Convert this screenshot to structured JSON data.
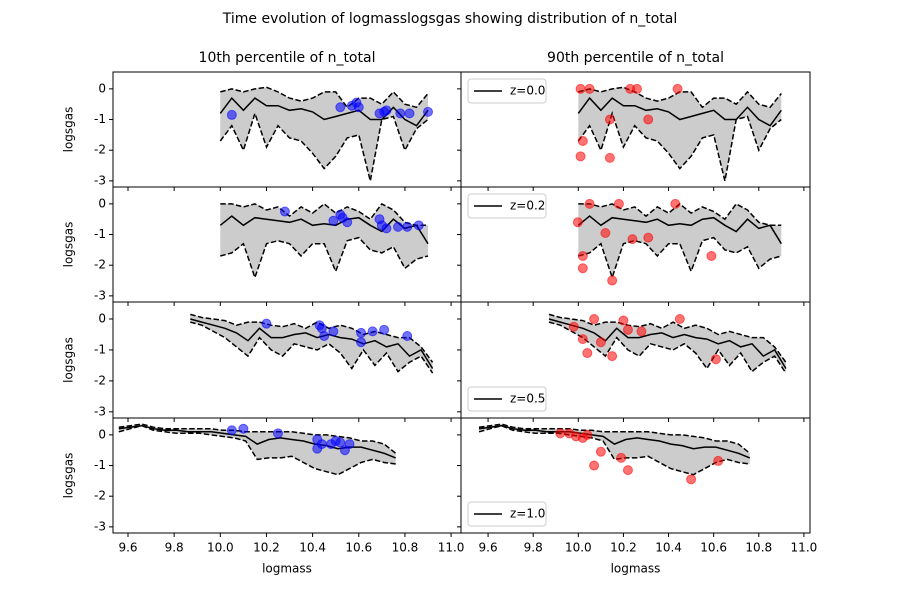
{
  "chart_data": {
    "type": "line",
    "title": "Time evolution of logmasslogsgas showing distribution of n_total",
    "xlabel": "logmass",
    "ylabel": "logsgas",
    "ylim": [
      -3.2,
      0.55
    ],
    "yticks": [
      -3,
      -2,
      -1,
      0
    ],
    "xticks": [
      9.6,
      9.8,
      {
        "value": 10,
        "label": "10.0"
      },
      10.2,
      10.4,
      10.6,
      10.8,
      {
        "value": 11,
        "label": "11.0"
      }
    ],
    "line_color": "#000000",
    "band_color": "#cccccc",
    "columns": [
      {
        "title": "10th percentile of n_total",
        "xlim": [
          9.535,
          11.043
        ],
        "scatter_color": "#0000ff"
      },
      {
        "title": "90th percentile of n_total",
        "xlim": [
          9.48,
          11.027
        ],
        "scatter_color": "#ff0000"
      }
    ],
    "rows": [
      {
        "legend": "z=0.0",
        "legend_loc": "upper left",
        "x": [
          10.0,
          10.05,
          10.1,
          10.15,
          10.2,
          10.25,
          10.3,
          10.35,
          10.4,
          10.45,
          10.5,
          10.55,
          10.6,
          10.65,
          10.7,
          10.75,
          10.8,
          10.85,
          10.9
        ],
        "median": [
          -0.8,
          -0.3,
          -0.7,
          -0.3,
          -0.55,
          -0.55,
          -0.7,
          -0.65,
          -0.75,
          -1.0,
          -0.9,
          -0.8,
          -0.7,
          -1.0,
          -1.0,
          -0.6,
          -1.0,
          -1.2,
          -0.7
        ],
        "upper": [
          -0.1,
          0.0,
          -0.1,
          0.0,
          0.05,
          -0.1,
          -0.3,
          -0.4,
          -0.3,
          -0.1,
          -0.1,
          -0.6,
          -0.3,
          -0.3,
          -0.5,
          -0.1,
          -0.5,
          -0.6,
          -0.15
        ],
        "lower": [
          -1.7,
          -1.2,
          -2.0,
          -0.8,
          -1.9,
          -1.2,
          -1.6,
          -1.7,
          -2.1,
          -2.6,
          -2.2,
          -1.6,
          -1.5,
          -3.0,
          -1.0,
          -0.9,
          -2.0,
          -1.3,
          -1.0
        ],
        "scatter": [
          {
            "x": [
              10.05,
              10.52,
              10.57,
              10.59,
              10.6,
              10.69,
              10.71,
              10.72,
              10.78,
              10.82,
              10.9
            ],
            "y": [
              -0.85,
              -0.6,
              -0.55,
              -0.45,
              -0.6,
              -0.8,
              -0.75,
              -0.7,
              -0.8,
              -0.8,
              -0.75
            ]
          },
          {
            "x": [
              10.01,
              10.05,
              10.14,
              10.23,
              10.26,
              10.44,
              10.31,
              10.01,
              10.02,
              10.14
            ],
            "y": [
              0,
              0,
              -1.0,
              0,
              0,
              0,
              -1.0,
              -2.2,
              -1.7,
              -2.25
            ]
          }
        ]
      },
      {
        "legend": "z=0.2",
        "legend_loc": "upper left",
        "x": [
          10.0,
          10.05,
          10.1,
          10.15,
          10.2,
          10.25,
          10.3,
          10.35,
          10.4,
          10.45,
          10.5,
          10.55,
          10.6,
          10.65,
          10.7,
          10.75,
          10.8,
          10.85,
          10.9
        ],
        "median": [
          -0.7,
          -0.4,
          -0.7,
          -0.45,
          -0.5,
          -0.55,
          -0.6,
          -0.5,
          -0.7,
          -0.65,
          -0.7,
          -0.5,
          -0.45,
          -0.7,
          -0.9,
          -0.5,
          -0.8,
          -0.7,
          -1.3
        ],
        "upper": [
          0.0,
          0.0,
          -0.1,
          0.0,
          -0.2,
          -0.1,
          -0.4,
          -0.1,
          -0.3,
          0.0,
          -0.3,
          -0.1,
          -0.25,
          -0.5,
          0.0,
          -0.2,
          -0.6,
          -0.7,
          -0.7
        ],
        "lower": [
          -1.7,
          -1.6,
          -1.3,
          -2.4,
          -1.3,
          -1.2,
          -1.3,
          -1.7,
          -1.3,
          -1.3,
          -2.2,
          -1.2,
          -1.1,
          -1.5,
          -1.6,
          -1.4,
          -2.1,
          -1.8,
          -1.7
        ],
        "scatter": [
          {
            "x": [
              10.28,
              10.49,
              10.52,
              10.53,
              10.55,
              10.69,
              10.7,
              10.72,
              10.77,
              10.81,
              10.86
            ],
            "y": [
              -0.25,
              -0.55,
              -0.35,
              -0.45,
              -0.6,
              -0.5,
              -0.7,
              -0.8,
              -0.75,
              -0.75,
              -0.7
            ]
          },
          {
            "x": [
              9.998,
              10.02,
              10.02,
              10.05,
              10.12,
              10.15,
              10.18,
              10.24,
              10.31,
              10.43,
              10.59
            ],
            "y": [
              -0.6,
              -1.7,
              -2.1,
              0,
              -0.95,
              -2.5,
              0,
              -1.15,
              -1.1,
              0,
              -1.7
            ]
          }
        ]
      },
      {
        "legend": "z=0.5",
        "legend_loc": "lower left",
        "x": [
          9.87,
          9.92,
          9.97,
          10.02,
          10.07,
          10.12,
          10.17,
          10.22,
          10.27,
          10.32,
          10.37,
          10.42,
          10.47,
          10.52,
          10.57,
          10.62,
          10.67,
          10.72,
          10.77,
          10.82,
          10.87,
          10.92
        ],
        "median": [
          0.0,
          -0.1,
          -0.2,
          -0.3,
          -0.45,
          -0.7,
          -0.3,
          -0.6,
          -0.6,
          -0.5,
          -0.45,
          -0.6,
          -0.5,
          -0.6,
          -0.65,
          -0.8,
          -0.7,
          -0.9,
          -0.8,
          -1.2,
          -1.0,
          -1.6
        ],
        "upper": [
          0.15,
          0.05,
          0.0,
          -0.05,
          -0.2,
          -0.1,
          -0.1,
          -0.2,
          -0.25,
          -0.15,
          -0.3,
          -0.1,
          -0.3,
          -0.2,
          -0.3,
          -0.5,
          -0.4,
          -0.5,
          -0.6,
          -0.6,
          -0.9,
          -1.4
        ],
        "lower": [
          -0.1,
          -0.2,
          -0.4,
          -0.6,
          -0.9,
          -1.2,
          -0.6,
          -1.0,
          -1.2,
          -0.8,
          -0.9,
          -1.0,
          -0.8,
          -1.1,
          -1.6,
          -1.0,
          -1.5,
          -1.1,
          -1.7,
          -1.4,
          -1.2,
          -1.75
        ],
        "scatter": [
          {
            "x": [
              10.2,
              10.43,
              10.44,
              10.45,
              10.49,
              10.61,
              10.61,
              10.66,
              10.71,
              10.81
            ],
            "y": [
              -0.15,
              -0.2,
              -0.3,
              -0.55,
              -0.4,
              -0.45,
              -0.75,
              -0.4,
              -0.35,
              -0.55
            ]
          },
          {
            "x": [
              9.98,
              10.02,
              10.04,
              10.07,
              10.1,
              10.15,
              10.2,
              10.22,
              10.28,
              10.45,
              10.61
            ],
            "y": [
              -0.25,
              -0.65,
              -1.1,
              0,
              -0.75,
              -1.2,
              -0.05,
              -0.35,
              -0.4,
              0,
              -1.3
            ]
          }
        ]
      },
      {
        "legend": "z=1.0",
        "legend_loc": "lower left",
        "x": [
          9.56,
          9.61,
          9.66,
          9.71,
          9.76,
          9.81,
          9.86,
          9.91,
          9.96,
          10.01,
          10.06,
          10.11,
          10.16,
          10.21,
          10.26,
          10.31,
          10.36,
          10.41,
          10.46,
          10.51,
          10.56,
          10.61,
          10.66,
          10.71,
          10.76
        ],
        "median": [
          0.2,
          0.25,
          0.3,
          0.2,
          0.15,
          0.15,
          0.1,
          0.1,
          0.1,
          0.05,
          0.0,
          -0.05,
          -0.3,
          -0.15,
          -0.1,
          -0.15,
          -0.2,
          -0.3,
          -0.35,
          -0.45,
          -0.4,
          -0.4,
          -0.5,
          -0.6,
          -0.75
        ],
        "upper": [
          0.25,
          0.3,
          0.35,
          0.25,
          0.2,
          0.2,
          0.2,
          0.2,
          0.2,
          0.15,
          0.15,
          0.1,
          0.1,
          0.1,
          0.1,
          0.1,
          0.05,
          0.0,
          0.0,
          -0.05,
          -0.1,
          -0.2,
          -0.2,
          -0.3,
          -0.6
        ],
        "lower": [
          0.1,
          0.2,
          0.3,
          0.15,
          0.1,
          0.05,
          0.05,
          0.05,
          0.0,
          -0.05,
          -0.1,
          -0.2,
          -0.8,
          -0.75,
          -0.75,
          -0.7,
          -0.9,
          -1.1,
          -1.2,
          -1.3,
          -1.1,
          -0.9,
          -0.8,
          -0.9,
          -0.95
        ],
        "scatter": [
          {
            "x": [
              10.05,
              10.1,
              10.25,
              10.42,
              10.42,
              10.44,
              10.48,
              10.5,
              10.52,
              10.54,
              10.56
            ],
            "y": [
              0.15,
              0.2,
              0.05,
              -0.15,
              -0.45,
              -0.3,
              -0.3,
              -0.2,
              -0.25,
              -0.5,
              -0.3
            ]
          },
          {
            "x": [
              9.92,
              9.96,
              9.99,
              10.02,
              10.04,
              10.07,
              10.1,
              10.19,
              10.22,
              10.5,
              10.62
            ],
            "y": [
              0.05,
              0.05,
              -0.05,
              -0.1,
              0.0,
              -1.0,
              -0.55,
              -0.75,
              -1.15,
              -1.45,
              -0.85
            ]
          }
        ]
      }
    ]
  }
}
